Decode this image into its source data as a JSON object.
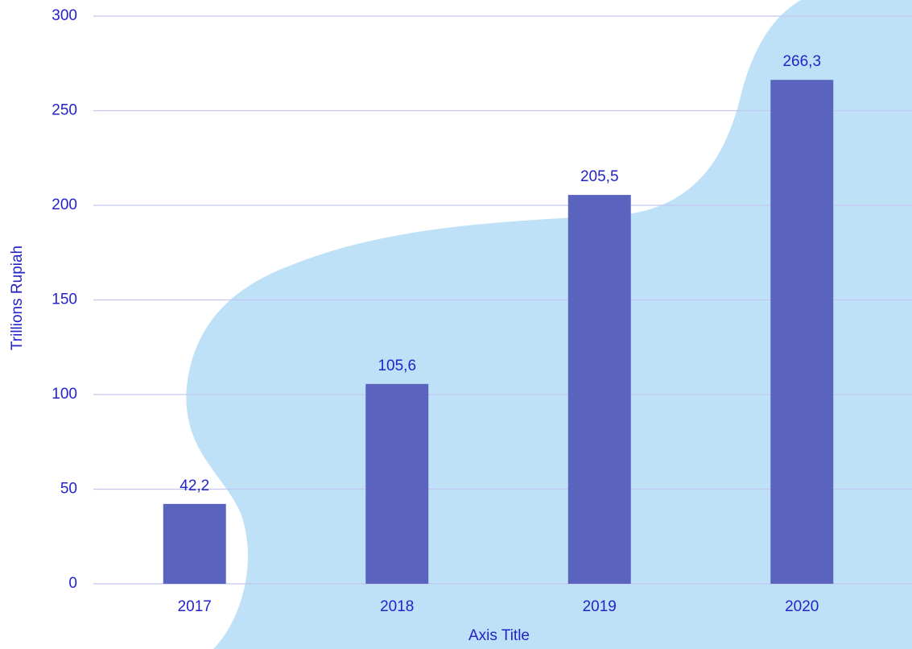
{
  "chart_data": {
    "type": "bar",
    "x_label": "Axis Title",
    "y_label": "Trillions Rupiah",
    "categories": [
      "2017",
      "2018",
      "2019",
      "2020"
    ],
    "values": [
      42.2,
      105.6,
      205.5,
      266.3
    ],
    "value_labels": [
      "42,2",
      "105,6",
      "205,5",
      "266,3"
    ],
    "color": "#5a64bf",
    "ylim": [
      0,
      300
    ],
    "yticks": [
      0,
      50,
      100,
      150,
      200,
      250,
      300
    ],
    "grid": true
  }
}
